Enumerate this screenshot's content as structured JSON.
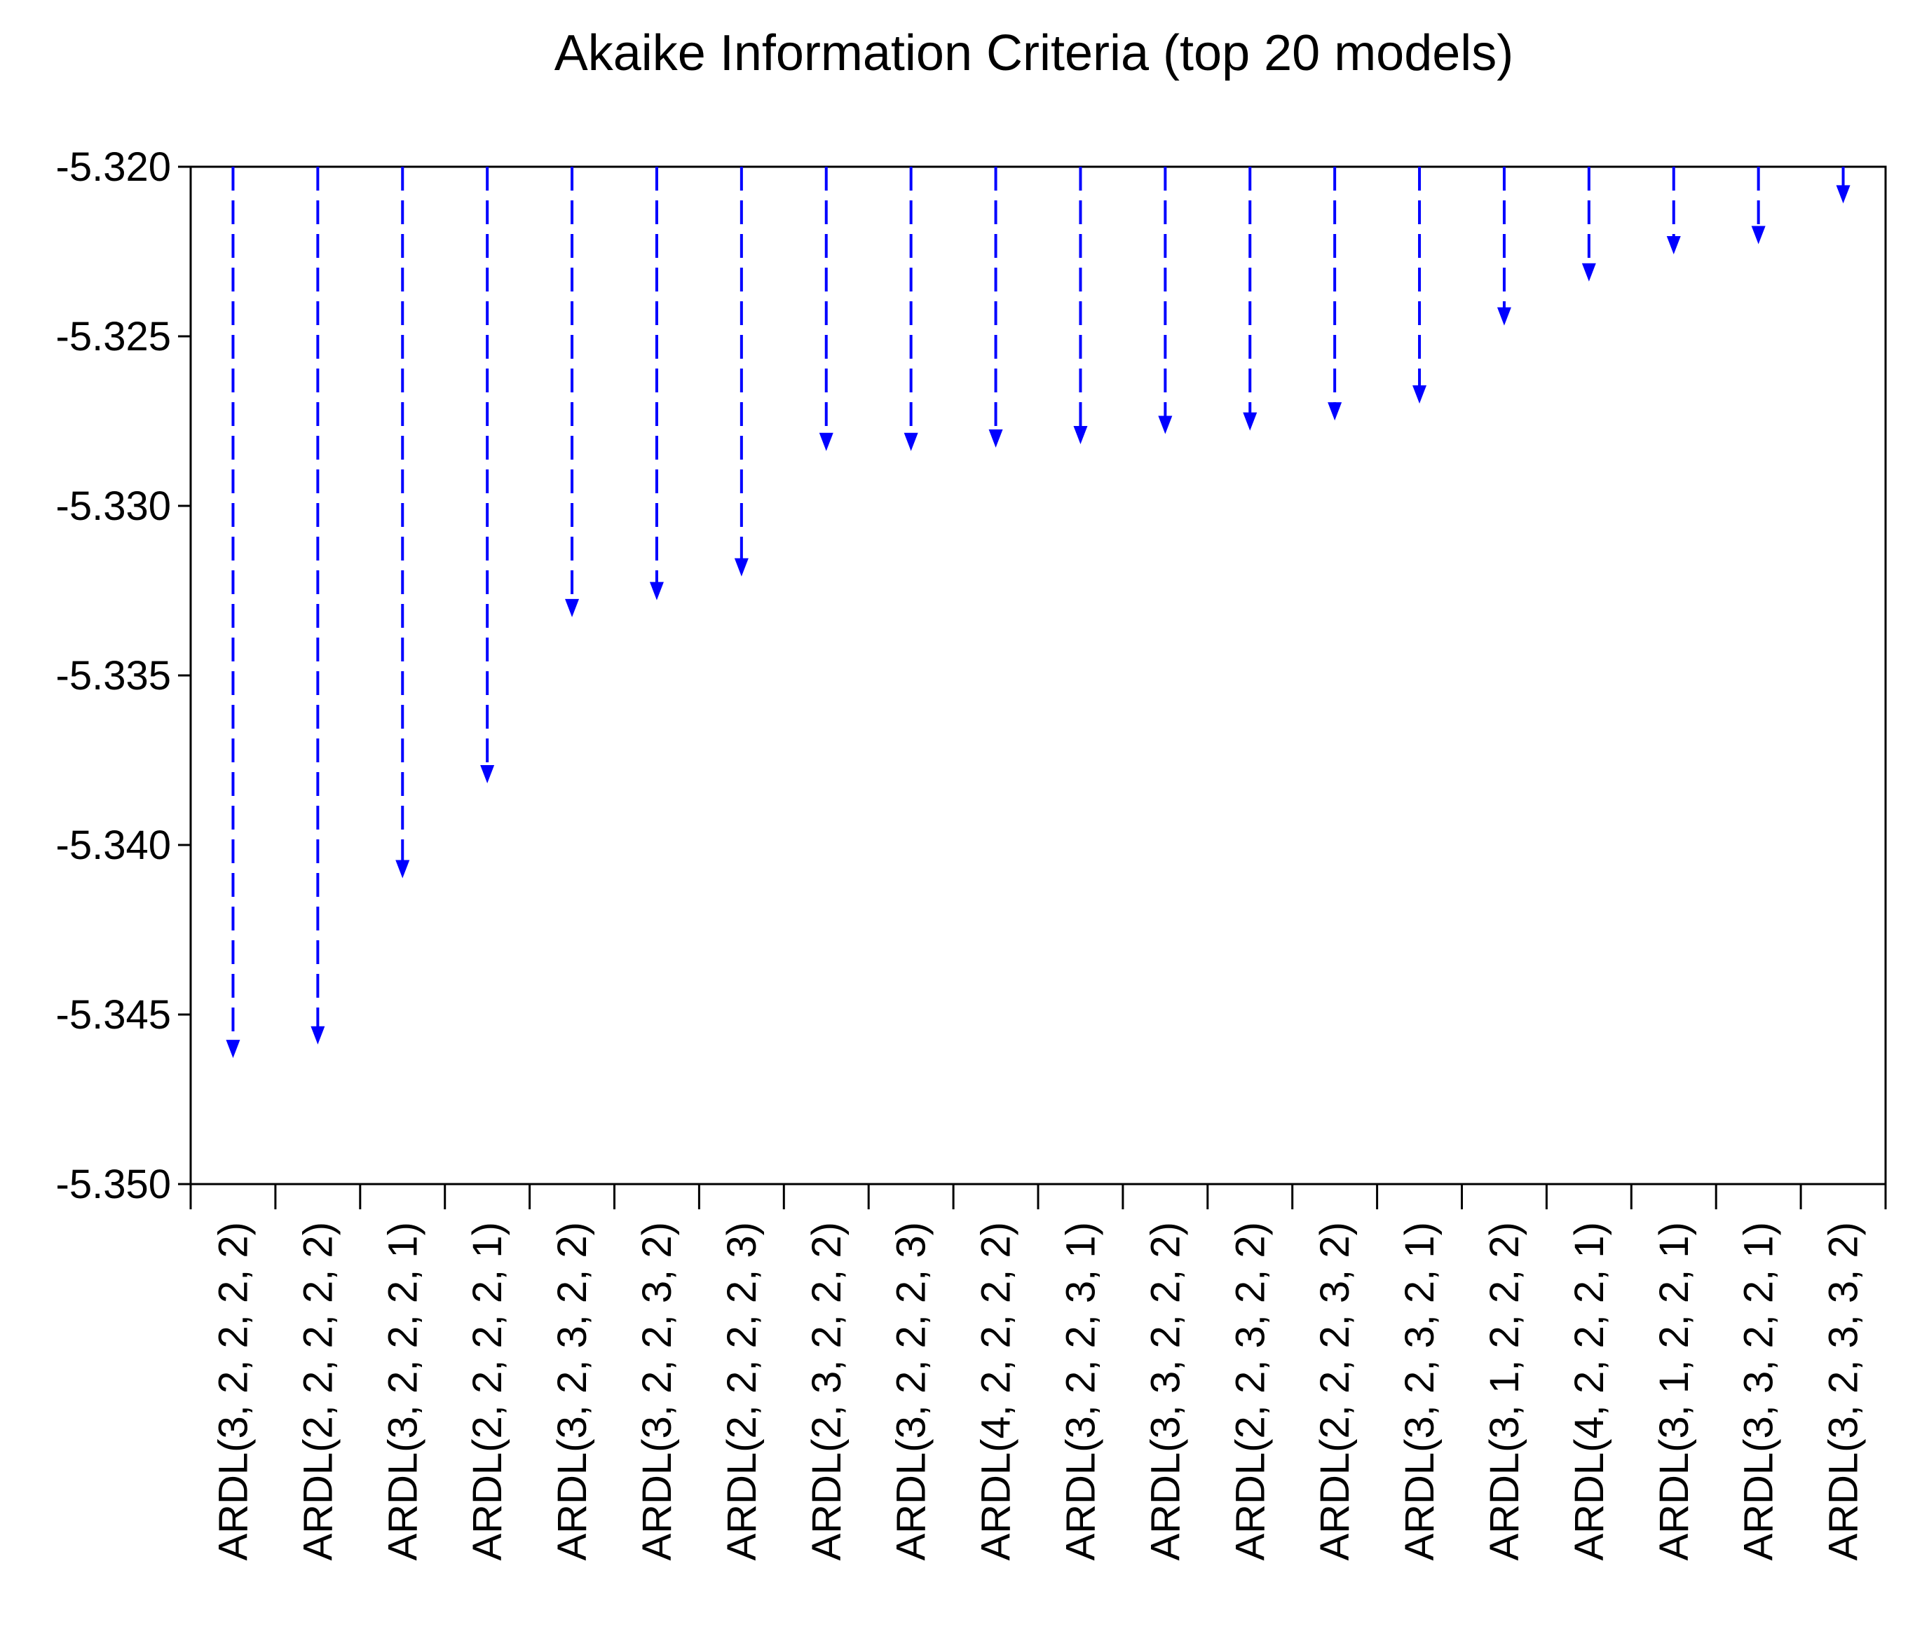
{
  "chart_data": {
    "type": "scatter",
    "style": "dashed drop arrows from top axis",
    "title": "Akaike Information Criteria (top 20 models)",
    "xlabel": "",
    "ylabel": "",
    "ylim": [
      -5.35,
      -5.32
    ],
    "y_ticks": [
      "-5.320",
      "-5.325",
      "-5.330",
      "-5.335",
      "-5.340",
      "-5.345",
      "-5.350"
    ],
    "y_tick_values": [
      -5.32,
      -5.325,
      -5.33,
      -5.335,
      -5.34,
      -5.345,
      -5.35
    ],
    "grid": false,
    "legend": "none",
    "color": "#0000ff",
    "categories": [
      "ARDL(3, 2, 2, 2, 2)",
      "ARDL(2, 2, 2, 2, 2)",
      "ARDL(3, 2, 2, 2, 1)",
      "ARDL(2, 2, 2, 2, 1)",
      "ARDL(3, 2, 3, 2, 2)",
      "ARDL(3, 2, 2, 3, 2)",
      "ARDL(2, 2, 2, 2, 3)",
      "ARDL(2, 3, 2, 2, 2)",
      "ARDL(3, 2, 2, 2, 3)",
      "ARDL(4, 2, 2, 2, 2)",
      "ARDL(3, 2, 2, 3, 1)",
      "ARDL(3, 3, 2, 2, 2)",
      "ARDL(2, 2, 3, 2, 2)",
      "ARDL(2, 2, 2, 3, 2)",
      "ARDL(3, 2, 3, 2, 1)",
      "ARDL(3, 1, 2, 2, 2)",
      "ARDL(4, 2, 2, 2, 1)",
      "ARDL(3, 1, 2, 2, 1)",
      "ARDL(3, 3, 2, 2, 1)",
      "ARDL(3, 2, 3, 3, 2)"
    ],
    "values": [
      -5.3462,
      -5.3458,
      -5.3409,
      -5.3381,
      -5.3332,
      -5.3327,
      -5.332,
      -5.3283,
      -5.3283,
      -5.3282,
      -5.3281,
      -5.3278,
      -5.3277,
      -5.3274,
      -5.3269,
      -5.3246,
      -5.3233,
      -5.3225,
      -5.3222,
      -5.321
    ]
  }
}
